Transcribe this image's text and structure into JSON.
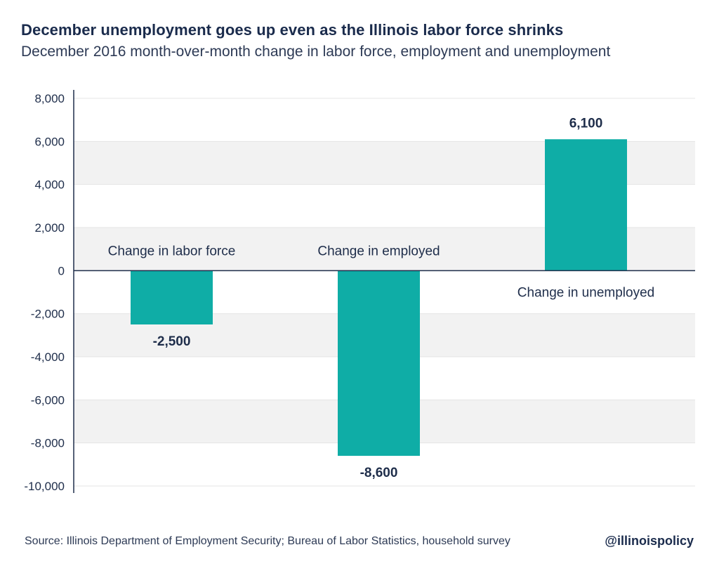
{
  "title": "December unemployment goes up even as the Illinois labor force shrinks",
  "subtitle": "December 2016 month-over-month change in labor force, employment and unemployment",
  "footer": {
    "source": "Source: Illinois Department of Employment Security; Bureau of Labor Statistics, household survey",
    "handle": "@illinoispolicy"
  },
  "colors": {
    "bar": "#0fada6",
    "band": "#f2f2f2",
    "axis": "#1e2d4a",
    "text": "#1e2d4a"
  },
  "chart_data": {
    "type": "bar",
    "categories": [
      "Change in labor force",
      "Change in employed",
      "Change in unemployed"
    ],
    "values": [
      -2500,
      -8600,
      6100
    ],
    "value_labels": [
      "-2,500",
      "-8,600",
      "6,100"
    ],
    "ylim": [
      -10000,
      8000
    ],
    "yticks": [
      8000,
      6000,
      4000,
      2000,
      0,
      -2000,
      -4000,
      -6000,
      -8000,
      -10000
    ],
    "ytick_labels": [
      "8,000",
      "6,000",
      "4,000",
      "2,000",
      "0",
      "-2,000",
      "-4,000",
      "-6,000",
      "-8,000",
      "-10,000"
    ],
    "grid": true,
    "legend": "none"
  }
}
